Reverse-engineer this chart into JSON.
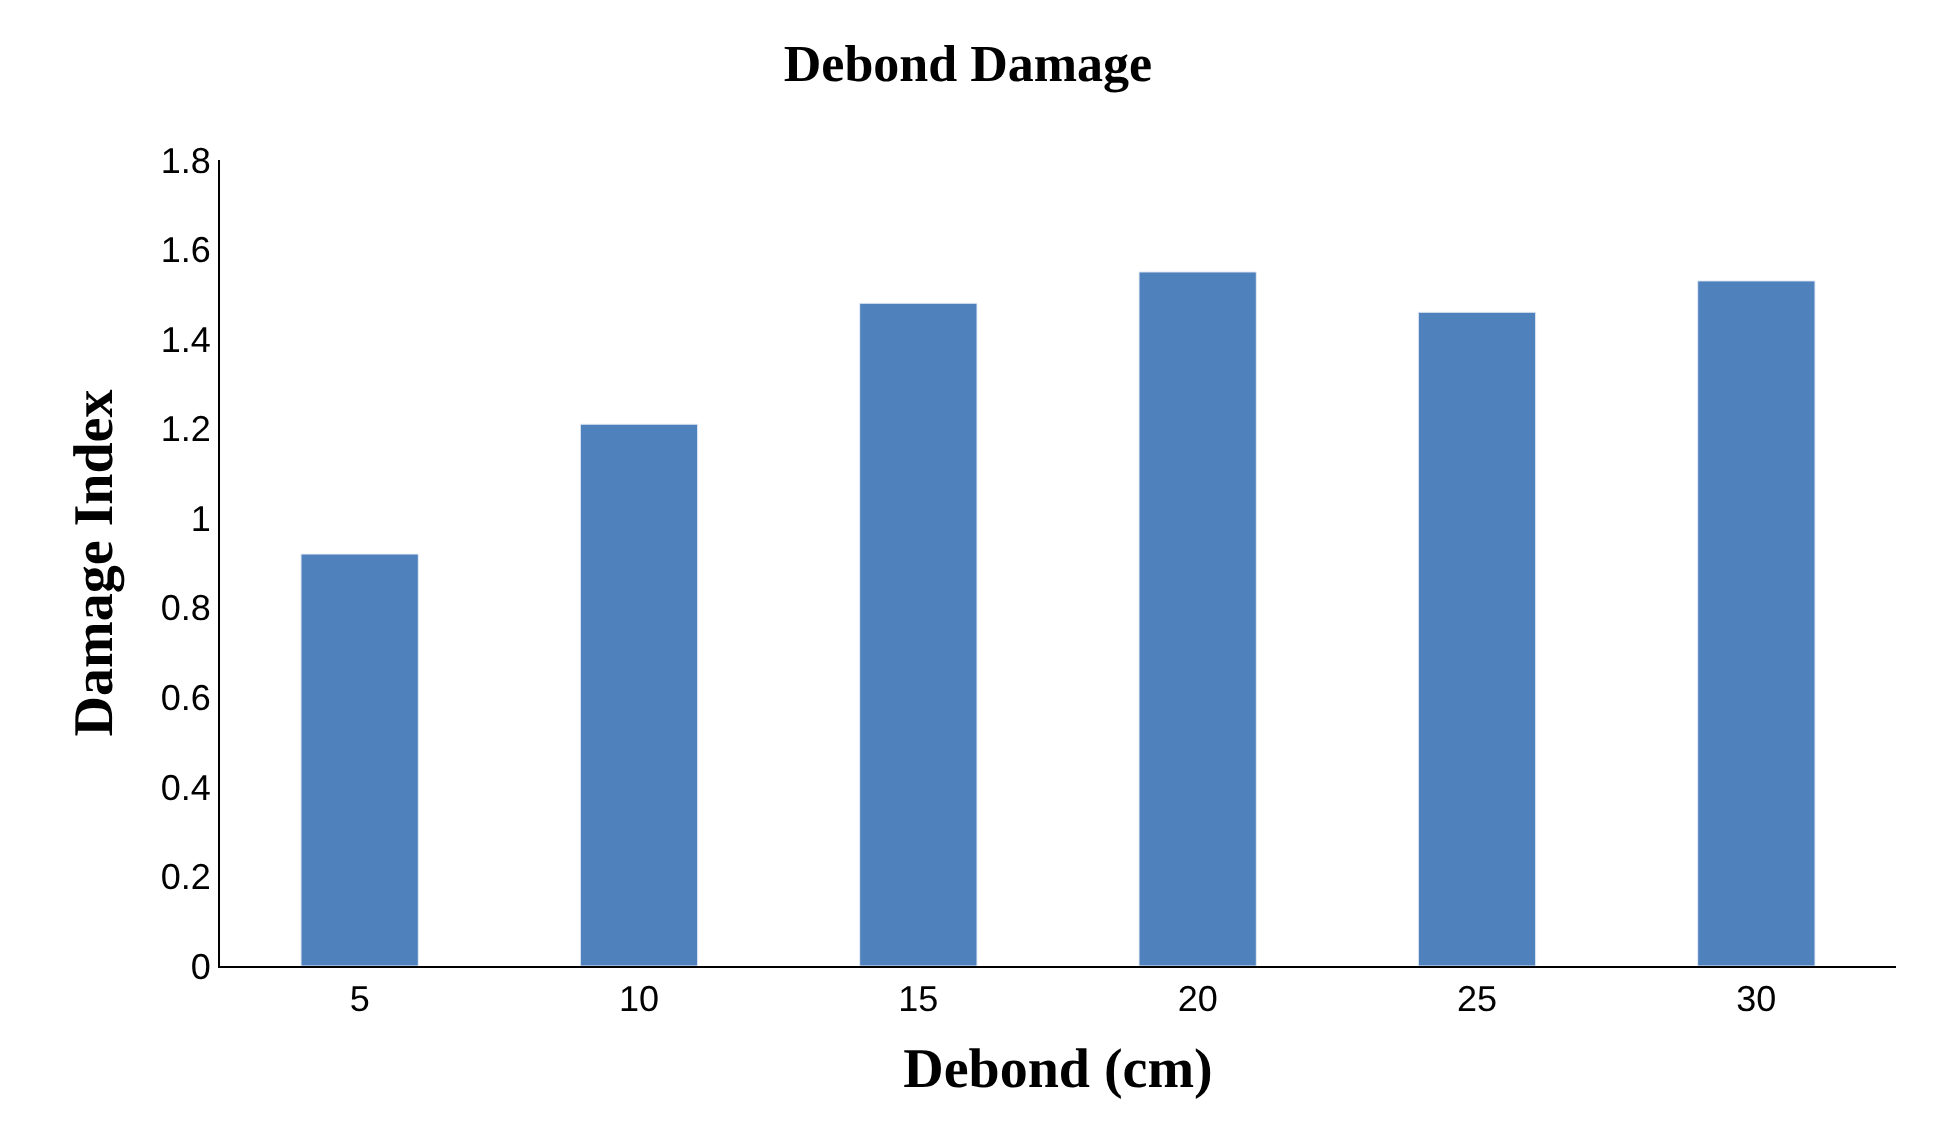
{
  "chart_data": {
    "type": "bar",
    "title": "Debond Damage",
    "xlabel": "Debond (cm)",
    "ylabel": "Damage Index",
    "categories": [
      "5",
      "10",
      "15",
      "20",
      "25",
      "30"
    ],
    "series": [
      {
        "color": "#4f81bd",
        "values": [
          0.92,
          1.21,
          1.48,
          1.55,
          1.46,
          1.53
        ]
      }
    ],
    "ylim": [
      0,
      1.8
    ],
    "yticks": [
      0,
      0.2,
      0.4,
      0.6,
      0.8,
      1,
      1.2,
      1.4,
      1.6,
      1.8
    ],
    "legend": false
  }
}
